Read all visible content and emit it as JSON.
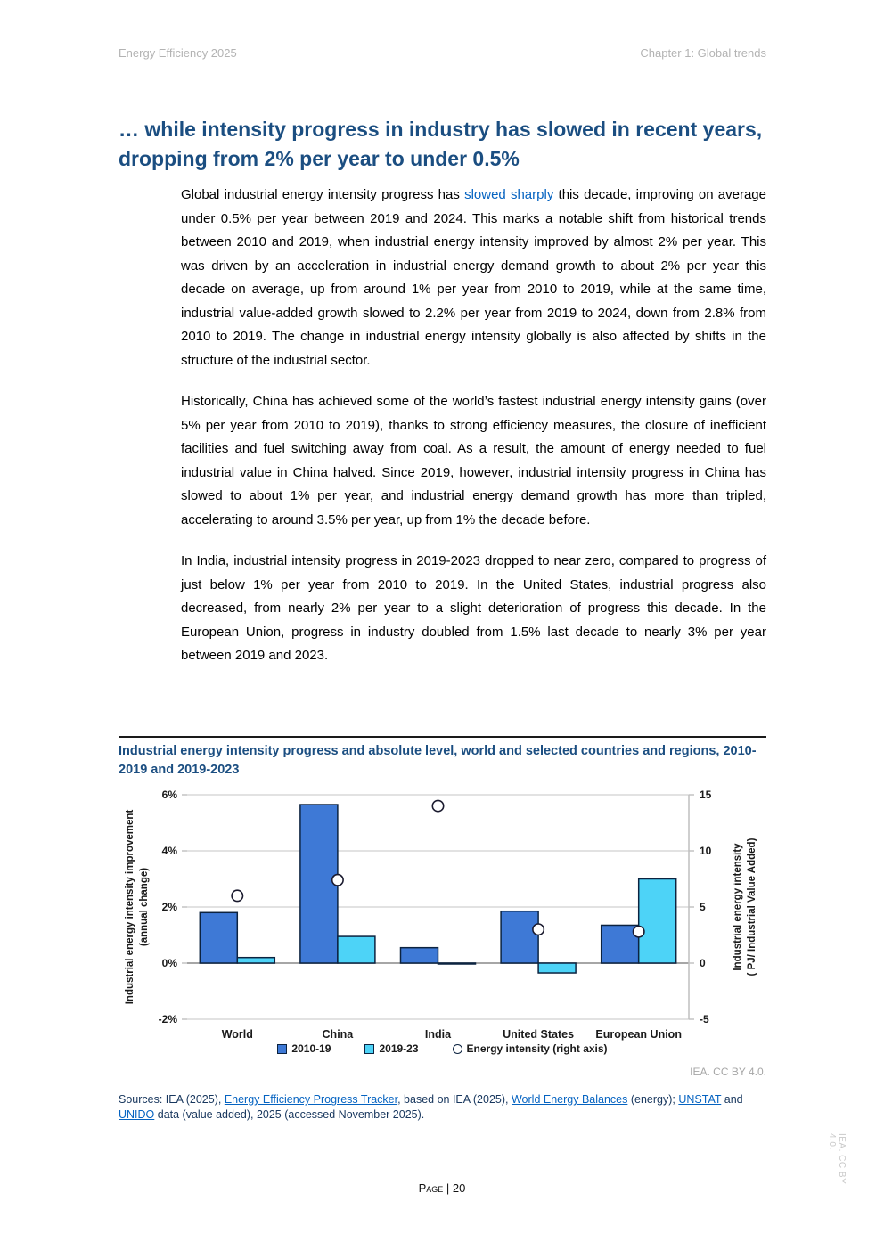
{
  "page": {
    "header_left": "Energy Efficiency 2025",
    "header_right": "Chapter 1: Global trends",
    "footer": "Page | 20",
    "side_note": "IEA. CC BY 4.0."
  },
  "theme": {
    "accent_navy": "#1b4e81",
    "link_blue": "#0563c1",
    "bar_dark_blue": "#3e79d6",
    "bar_light_blue": "#4dd3f7"
  },
  "article": {
    "title": "… while intensity progress in industry has slowed in recent years, dropping from 2% per year to under 0.5%",
    "p1_before": "Global industrial energy intensity progress has ",
    "p1_link": "slowed sharply",
    "p1_after": " this decade, improving on average under 0.5% per year between 2019 and 2024. This marks a notable shift from historical trends between 2010 and 2019, when industrial energy intensity improved by almost 2% per year. This was driven by an acceleration in industrial energy demand growth to about 2% per year this decade on average, up from around 1% per year from 2010 to 2019, while at the same time, industrial value-added growth slowed to 2.2% per year from 2019 to 2024, down from 2.8% from 2010 to 2019. The change in industrial energy intensity globally is also affected by shifts in the structure of the industrial sector.",
    "p2": "Historically, China has achieved some of the world’s fastest industrial energy intensity gains (over 5% per year from 2010 to 2019), thanks to strong efficiency measures, the closure of inefficient facilities and fuel switching away from coal. As a result, the amount of energy needed to fuel industrial value in China halved. Since 2019, however, industrial intensity progress in China has slowed to about 1% per year, and industrial energy demand growth has more than tripled, accelerating to around 3.5% per year, up from 1% the decade before.",
    "p3": "In India, industrial intensity progress in 2019-2023 dropped to near zero, compared to progress of just below 1% per year from 2010 to 2019. In the United States, industrial progress also decreased, from nearly 2% per year to a slight deterioration of progress this decade. In the European Union, progress in industry doubled from 1.5% last decade to nearly 3% per year between 2019 and 2023."
  },
  "chart_data": {
    "type": "bar",
    "title": "Industrial energy intensity progress and absolute level, world and selected countries and regions, 2010-2019 and 2019-2023",
    "categories": [
      "World",
      "China",
      "India",
      "United States",
      "European Union"
    ],
    "series": [
      {
        "name": "2010-19",
        "type": "bar",
        "axis": "left",
        "color": "#3e79d6",
        "values": [
          1.8,
          5.65,
          0.55,
          1.85,
          1.35
        ]
      },
      {
        "name": "2019-23",
        "type": "bar",
        "axis": "left",
        "color": "#4dd3f7",
        "values": [
          0.2,
          0.95,
          0.0,
          -0.35,
          3.0
        ]
      },
      {
        "name": "Energy intensity (right axis)",
        "type": "scatter",
        "axis": "right",
        "color": "#ffffff",
        "values": [
          6.0,
          7.4,
          14.0,
          3.0,
          2.8
        ]
      }
    ],
    "left_axis": {
      "label_lines": [
        "Industrial energy intensity improvement",
        "(annual change)"
      ],
      "min": -2,
      "max": 6,
      "tick_values": [
        6,
        4,
        2,
        0,
        -2
      ],
      "tick_labels": [
        "6%",
        "4%",
        "2%",
        "0%",
        "-2%"
      ]
    },
    "right_axis": {
      "label_lines": [
        "Industrial energy intensity",
        "( PJ/ Industrial Value Added)"
      ],
      "min": -5,
      "max": 15,
      "tick_values": [
        15,
        10,
        5,
        0,
        -5
      ],
      "tick_labels": [
        "15",
        "10",
        "5",
        "0",
        "-5"
      ]
    },
    "legend": [
      {
        "label": "2010-19",
        "shape": "square",
        "color": "#3e79d6"
      },
      {
        "label": "2019-23",
        "shape": "square",
        "color": "#4dd3f7"
      },
      {
        "label": "Energy intensity (right axis)",
        "shape": "circle",
        "color": "#ffffff"
      }
    ],
    "grid": true,
    "legend_position": "bottom",
    "attribution": "IEA. CC BY 4.0."
  },
  "sources": {
    "segments": [
      {
        "t": "Sources: IEA (2025), "
      },
      {
        "t": "Energy Efficiency Progress Tracker",
        "link": true
      },
      {
        "t": ", based on IEA (2025), "
      },
      {
        "t": "World Energy Balances",
        "link": true
      },
      {
        "t": " (energy); "
      },
      {
        "t": "UNSTAT",
        "link": true
      },
      {
        "t": " and "
      },
      {
        "t": "UNIDO",
        "link": true
      },
      {
        "t": " data (value added), 2025 (accessed November 2025)."
      }
    ]
  }
}
